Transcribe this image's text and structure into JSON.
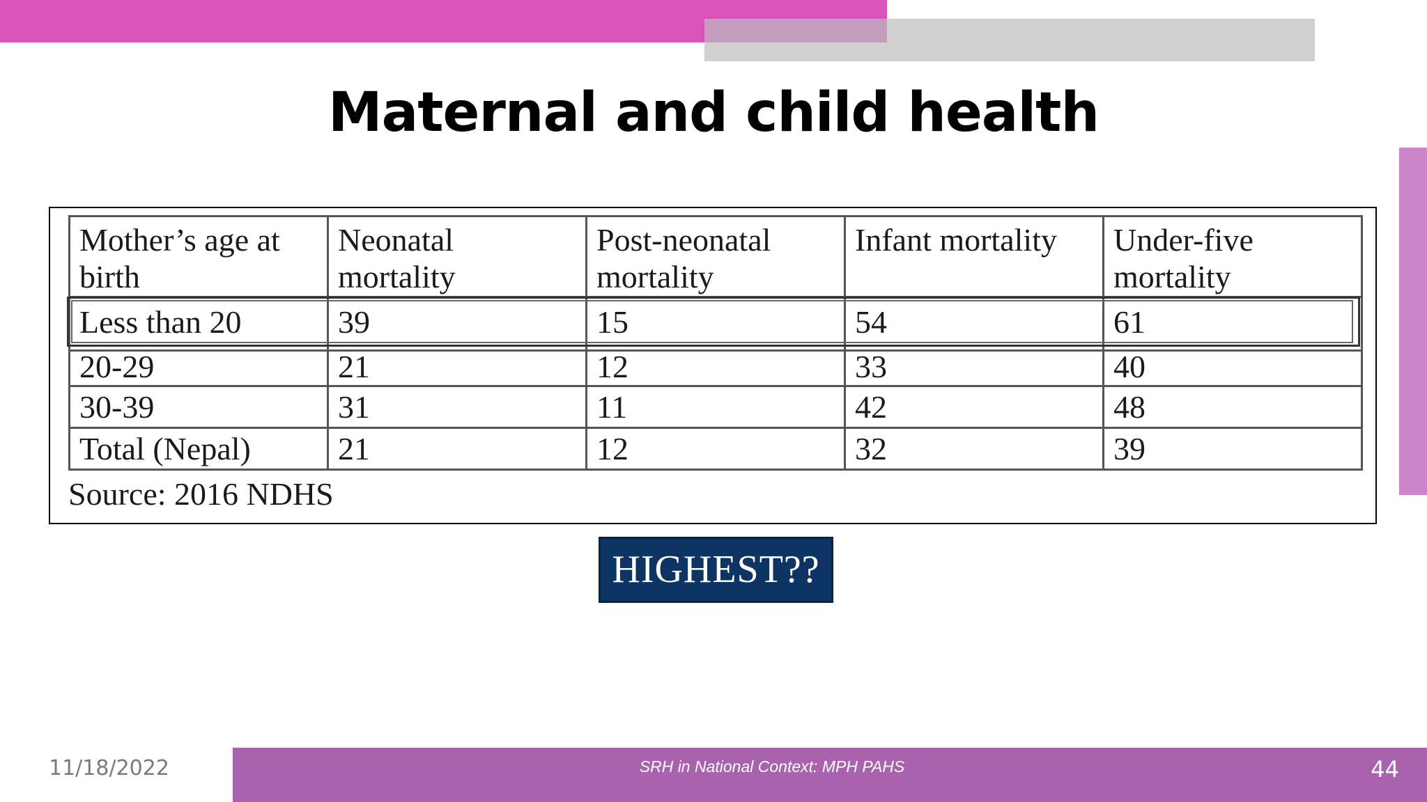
{
  "slide": {
    "title": "Maternal and child health",
    "source": "Source: 2016 NDHS",
    "callout": "HIGHEST??",
    "date": "11/18/2022",
    "footer": "SRH in National Context: MPH PAHS",
    "page_number": "44"
  },
  "table": {
    "headers": [
      "Mother’s age at birth",
      "Neonatal mortality",
      "Post-neonatal mortality",
      "Infant mortality",
      "Under-five mortality"
    ],
    "rows": [
      [
        "Less than 20",
        "39",
        "15",
        "54",
        "61"
      ],
      [
        "20-29",
        "21",
        "12",
        "33",
        "40"
      ],
      [
        "30-39",
        "31",
        "11",
        "42",
        "48"
      ],
      [
        "Total (Nepal)",
        "21",
        "12",
        "32",
        "39"
      ]
    ]
  },
  "colors": {
    "top_bar": "#d854bd",
    "side_accent": "#cc84c9",
    "footer_bar": "#a962ad",
    "callout_bg": "#0d3463"
  }
}
